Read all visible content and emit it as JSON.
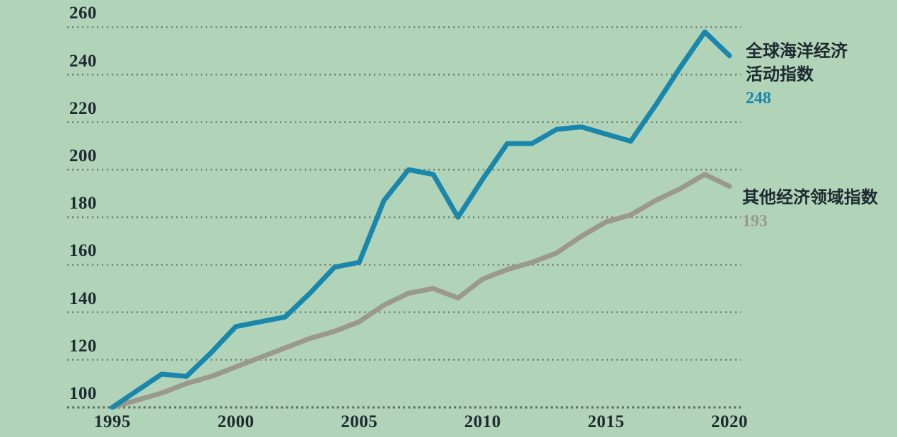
{
  "chart_data": {
    "type": "line",
    "title": "",
    "x": [
      1995,
      1996,
      1997,
      1998,
      1999,
      2000,
      2001,
      2002,
      2003,
      2004,
      2005,
      2006,
      2007,
      2008,
      2009,
      2010,
      2011,
      2012,
      2013,
      2014,
      2015,
      2016,
      2017,
      2018,
      2019,
      2020
    ],
    "xticks": [
      1995,
      2000,
      2005,
      2010,
      2015,
      2020
    ],
    "yticks": [
      100,
      120,
      140,
      160,
      180,
      200,
      220,
      240,
      260
    ],
    "ylim": [
      95,
      265
    ],
    "xlabel": "",
    "ylabel": "",
    "grid": "horizontal-dotted",
    "legend_position": "right-of-line-ends",
    "series": [
      {
        "name": "全球海洋经济活动指数",
        "color": "#1987ab",
        "final_value_label": "248",
        "values": [
          100,
          107,
          114,
          113,
          123,
          134,
          136,
          138,
          148,
          159,
          161,
          187,
          200,
          198,
          180,
          196,
          211,
          211,
          217,
          218,
          215,
          212,
          227,
          243,
          258,
          248
        ]
      },
      {
        "name": "其他经济领域指数",
        "color": "#9b998c",
        "final_value_label": "193",
        "values": [
          100,
          103,
          106,
          110,
          113,
          117,
          121,
          125,
          129,
          132,
          136,
          143,
          148,
          150,
          146,
          154,
          158,
          161,
          165,
          172,
          178,
          181,
          187,
          192,
          198,
          193
        ]
      }
    ]
  },
  "legend": {
    "ocean": {
      "line1": "全球海洋经济",
      "line2": "活动指数",
      "value": "248"
    },
    "other": {
      "line1": "其他经济领域指数",
      "value": "193"
    }
  },
  "colors": {
    "background": "#b1d3b8",
    "ocean_line": "#1987ab",
    "other_line": "#9b998c",
    "grid_dots": "#6e8074",
    "axis_dots": "#5e7166",
    "text": "#1e2a31"
  }
}
